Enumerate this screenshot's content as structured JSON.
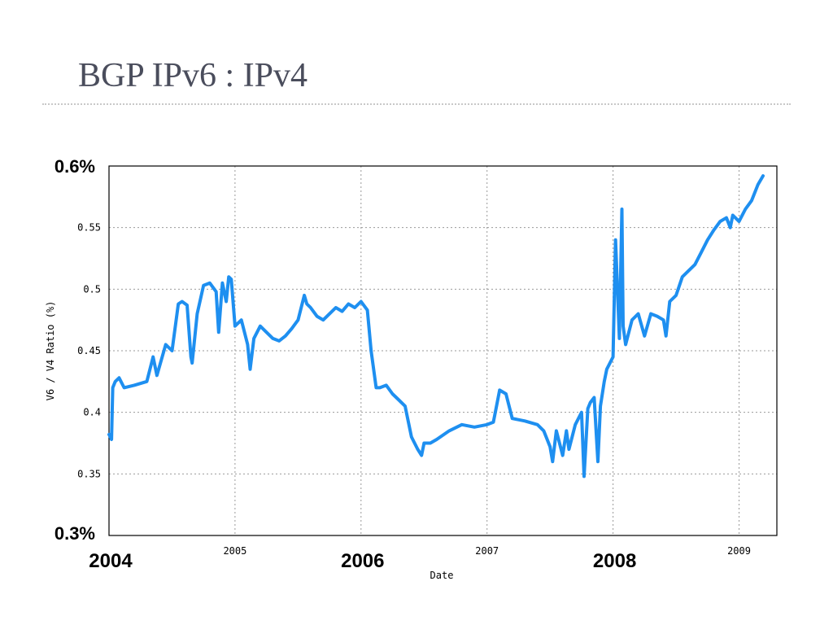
{
  "slide": {
    "title": "BGP IPv6 : IPv4"
  },
  "colors": {
    "series": "#1e8ff0",
    "title": "#4a4d5c",
    "grid": "#999999"
  },
  "chart_data": {
    "type": "line",
    "title": "",
    "xlabel": "Date",
    "ylabel": "V6 / V4 Ratio (%)",
    "xlim": [
      2004.0,
      2009.3
    ],
    "ylim": [
      0.3,
      0.6
    ],
    "grid": true,
    "legend": "none",
    "x_ticks": [
      {
        "value": 2005,
        "label": "2005"
      },
      {
        "value": 2007,
        "label": "2007"
      },
      {
        "value": 2009,
        "label": "2009"
      }
    ],
    "y_ticks": [
      {
        "value": 0.35,
        "label": "0.35"
      },
      {
        "value": 0.4,
        "label": "0.4"
      },
      {
        "value": 0.45,
        "label": "0.45"
      },
      {
        "value": 0.5,
        "label": "0.5"
      },
      {
        "value": 0.55,
        "label": "0.55"
      }
    ],
    "annotations": {
      "y_top": "0.6%",
      "y_bottom": "0.3%",
      "x_labels": [
        {
          "value": 2004,
          "label": "2004"
        },
        {
          "value": 2006,
          "label": "2006"
        },
        {
          "value": 2008,
          "label": "2008"
        }
      ]
    },
    "series": [
      {
        "x": [
          2004.0,
          2004.02,
          2004.03,
          2004.05,
          2004.08,
          2004.12,
          2004.2,
          2004.3,
          2004.35,
          2004.38,
          2004.45,
          2004.5,
          2004.55,
          2004.58,
          2004.62,
          2004.65,
          2004.66,
          2004.7,
          2004.75,
          2004.8,
          2004.85,
          2004.87,
          2004.9,
          2004.93,
          2004.95,
          2004.97,
          2005.0,
          2005.05,
          2005.1,
          2005.12,
          2005.15,
          2005.2,
          2005.25,
          2005.3,
          2005.35,
          2005.4,
          2005.45,
          2005.5,
          2005.55,
          2005.57,
          2005.6,
          2005.65,
          2005.7,
          2005.75,
          2005.8,
          2005.85,
          2005.9,
          2005.95,
          2006.0,
          2006.05,
          2006.08,
          2006.12,
          2006.15,
          2006.2,
          2006.25,
          2006.3,
          2006.35,
          2006.4,
          2006.45,
          2006.48,
          2006.5,
          2006.55,
          2006.6,
          2006.7,
          2006.8,
          2006.9,
          2007.0,
          2007.05,
          2007.1,
          2007.15,
          2007.2,
          2007.3,
          2007.4,
          2007.45,
          2007.5,
          2007.52,
          2007.55,
          2007.6,
          2007.63,
          2007.65,
          2007.7,
          2007.75,
          2007.77,
          2007.8,
          2007.82,
          2007.85,
          2007.88,
          2007.9,
          2007.93,
          2007.95,
          2008.0,
          2008.02,
          2008.05,
          2008.07,
          2008.08,
          2008.1,
          2008.15,
          2008.2,
          2008.25,
          2008.3,
          2008.35,
          2008.4,
          2008.42,
          2008.45,
          2008.5,
          2008.55,
          2008.6,
          2008.65,
          2008.7,
          2008.75,
          2008.8,
          2008.85,
          2008.9,
          2008.93,
          2008.95,
          2009.0,
          2009.05,
          2009.1,
          2009.15,
          2009.19
        ],
        "y": [
          0.382,
          0.378,
          0.42,
          0.425,
          0.428,
          0.42,
          0.422,
          0.425,
          0.445,
          0.43,
          0.455,
          0.45,
          0.488,
          0.49,
          0.487,
          0.445,
          0.44,
          0.48,
          0.503,
          0.505,
          0.498,
          0.465,
          0.505,
          0.49,
          0.51,
          0.508,
          0.47,
          0.475,
          0.455,
          0.435,
          0.46,
          0.47,
          0.465,
          0.46,
          0.458,
          0.462,
          0.468,
          0.475,
          0.495,
          0.488,
          0.485,
          0.478,
          0.475,
          0.48,
          0.485,
          0.482,
          0.488,
          0.485,
          0.49,
          0.483,
          0.45,
          0.42,
          0.42,
          0.422,
          0.415,
          0.41,
          0.405,
          0.38,
          0.37,
          0.365,
          0.375,
          0.375,
          0.378,
          0.385,
          0.39,
          0.388,
          0.39,
          0.392,
          0.418,
          0.415,
          0.395,
          0.393,
          0.39,
          0.385,
          0.372,
          0.36,
          0.385,
          0.365,
          0.385,
          0.37,
          0.39,
          0.4,
          0.348,
          0.403,
          0.408,
          0.412,
          0.36,
          0.405,
          0.425,
          0.435,
          0.445,
          0.54,
          0.46,
          0.565,
          0.47,
          0.455,
          0.475,
          0.48,
          0.462,
          0.48,
          0.478,
          0.475,
          0.462,
          0.49,
          0.495,
          0.51,
          0.515,
          0.52,
          0.53,
          0.54,
          0.548,
          0.555,
          0.558,
          0.55,
          0.56,
          0.555,
          0.565,
          0.572,
          0.585,
          0.592
        ]
      }
    ]
  }
}
